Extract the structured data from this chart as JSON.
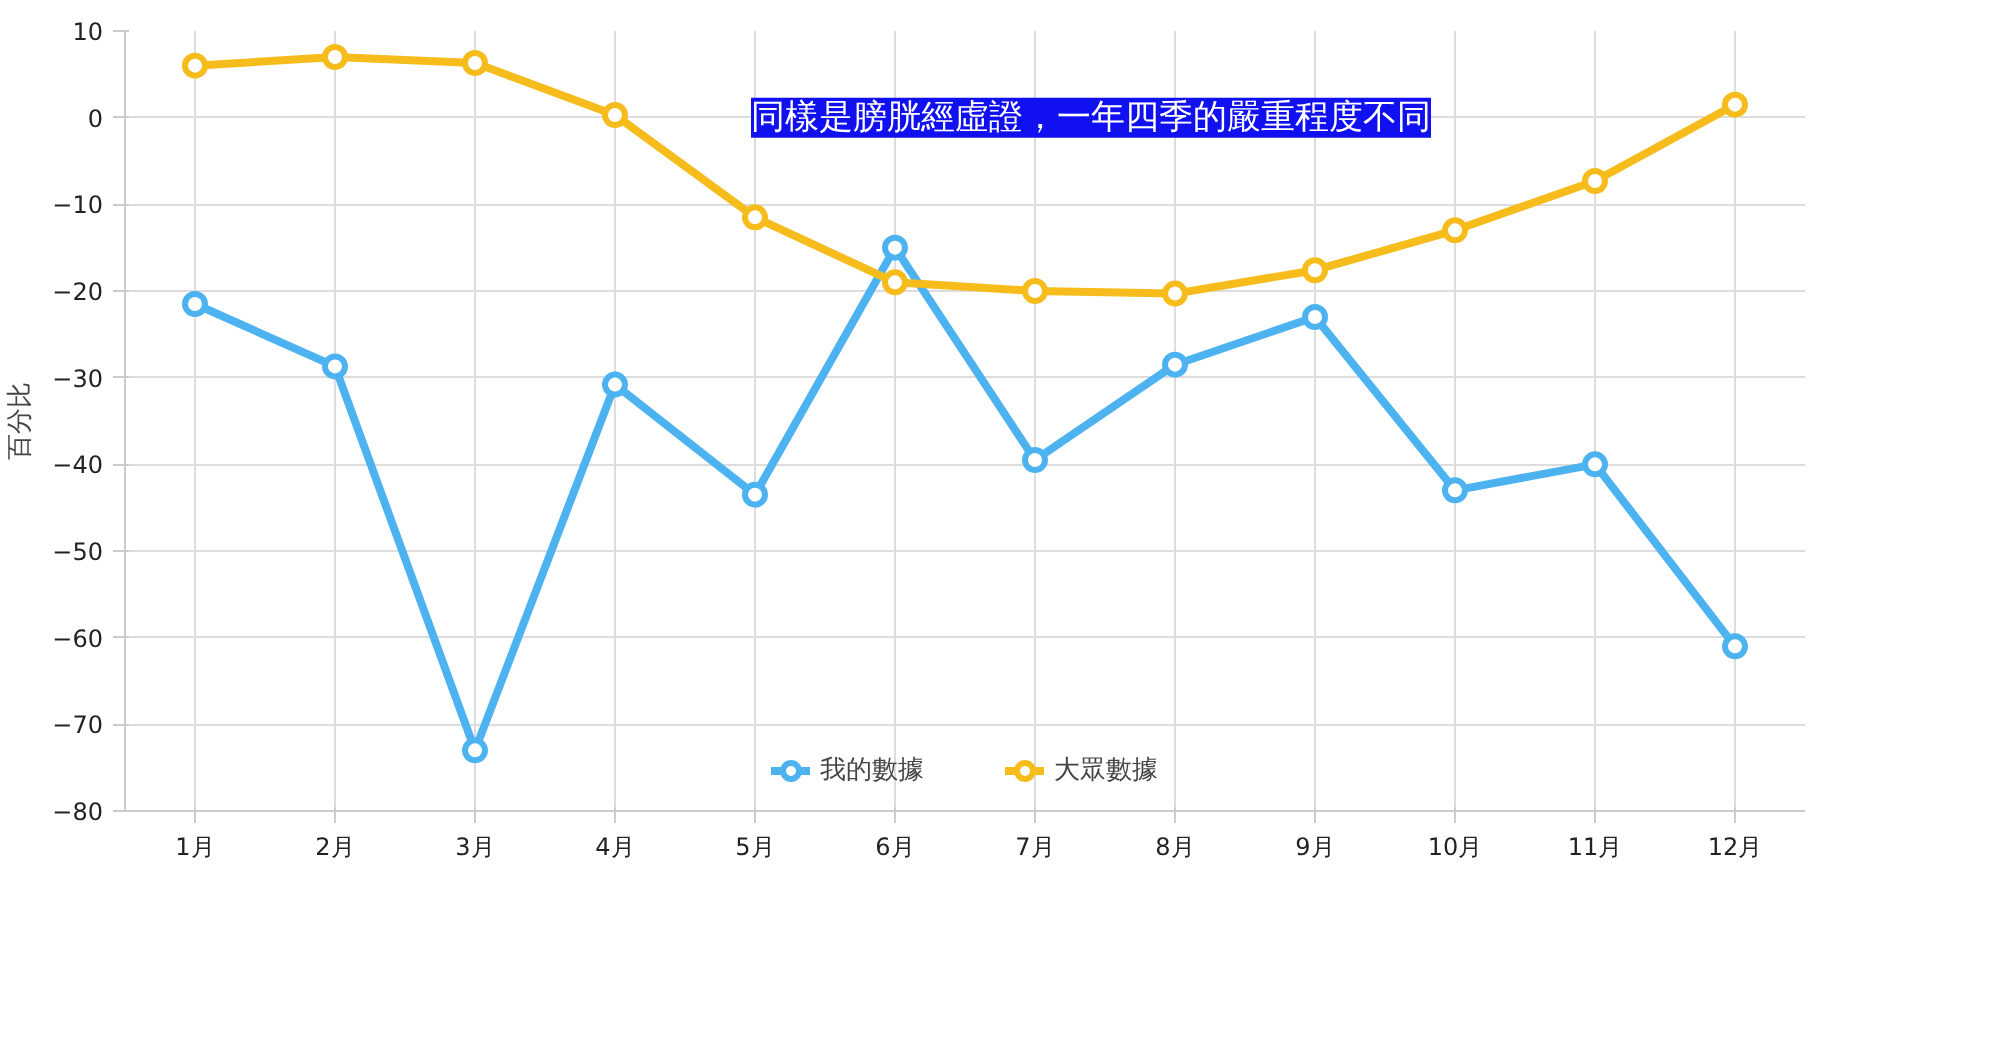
{
  "chart_data": {
    "type": "line",
    "ylabel": "百分比",
    "categories": [
      "1月",
      "2月",
      "3月",
      "4月",
      "5月",
      "6月",
      "7月",
      "8月",
      "9月",
      "10月",
      "11月",
      "12月"
    ],
    "series": [
      {
        "name": "我的數據",
        "color": "#4db3f0",
        "values": [
          -21.5,
          -28.7,
          -73,
          -30.8,
          -43.5,
          -15,
          -39.5,
          -28.5,
          -23,
          -43,
          -40,
          -61
        ]
      },
      {
        "name": "大眾數據",
        "color": "#f5bc1c",
        "values": [
          6,
          7,
          6.3,
          0.3,
          -11.5,
          -19,
          -20,
          -20.3,
          -17.6,
          -13,
          -7.3,
          1.5
        ]
      }
    ],
    "ylim": [
      -80,
      10
    ],
    "yticks": [
      -80,
      -70,
      -60,
      -50,
      -40,
      -30,
      -20,
      -10,
      0,
      10
    ],
    "grid": true,
    "legend": "bottom",
    "marker": "circle",
    "line_style": "solid",
    "annotations": [
      "同樣是膀胱經虛證，一年四季的嚴重程度不同"
    ]
  }
}
